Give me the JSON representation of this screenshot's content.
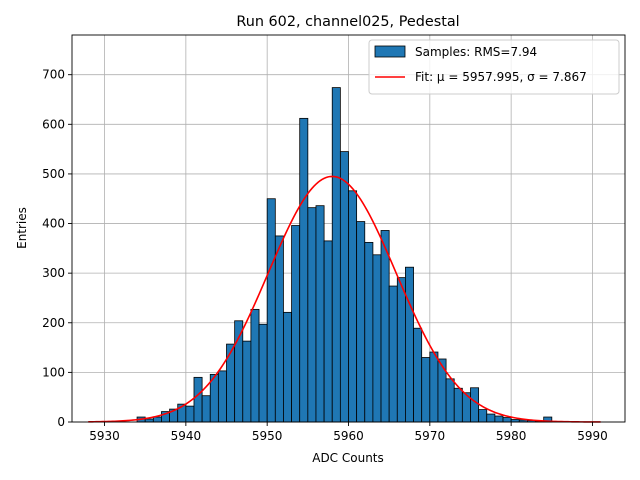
{
  "chart_data": {
    "type": "bar",
    "title": "Run 602, channel025, Pedestal",
    "xlabel": "ADC Counts",
    "ylabel": "Entries",
    "xlim": [
      5926,
      5994
    ],
    "ylim": [
      0,
      780
    ],
    "xticks": [
      5930,
      5940,
      5950,
      5960,
      5970,
      5980,
      5990
    ],
    "yticks": [
      0,
      100,
      200,
      300,
      400,
      500,
      600,
      700
    ],
    "grid": true,
    "legend_position": "top-right",
    "histogram": {
      "name": "Samples: RMS=7.94",
      "color": "#1f77b4",
      "bin_width": 1,
      "bin_start": 5934,
      "counts": [
        10,
        6,
        10,
        21,
        26,
        36,
        32,
        90,
        53,
        96,
        103,
        157,
        204,
        163,
        227,
        197,
        450,
        375,
        221,
        396,
        612,
        432,
        436,
        365,
        674,
        545,
        466,
        404,
        362,
        337,
        386,
        274,
        291,
        312,
        189,
        130,
        141,
        127,
        87,
        68,
        59,
        69,
        25,
        16,
        12,
        9,
        5,
        4,
        3,
        2,
        10
      ]
    },
    "fit": {
      "name": "Fit: μ = 5957.995, σ = 7.867",
      "color": "#ff0000",
      "mu": 5957.995,
      "sigma": 7.867,
      "amplitude": 495,
      "x_range": [
        5928,
        5991
      ]
    }
  }
}
